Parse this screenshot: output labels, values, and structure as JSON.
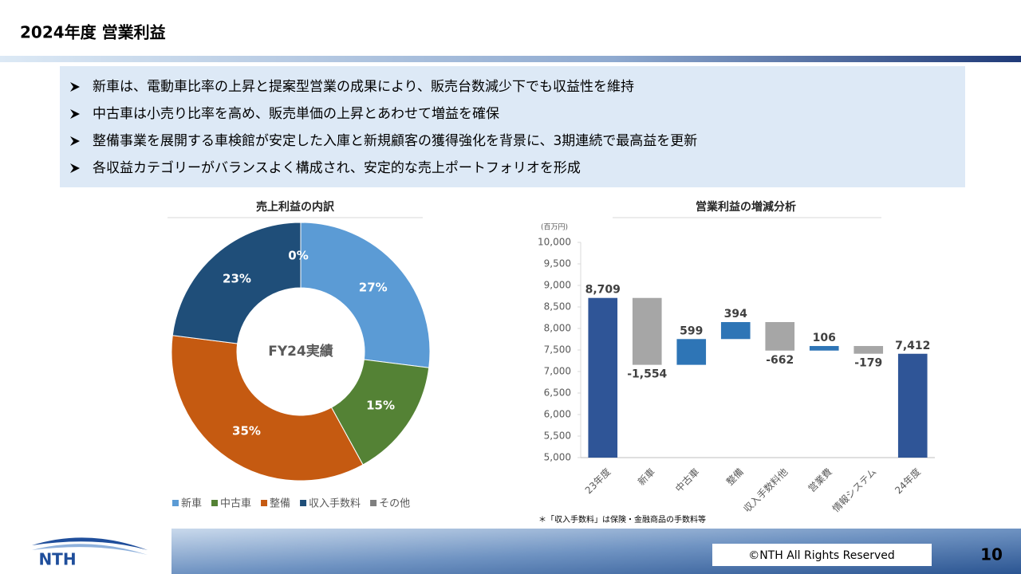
{
  "title": "2024年度 営業利益",
  "bullets": [
    "新車は、電動車比率の上昇と提案型営業の成果により、販売台数減少下でも収益性を維持",
    "中古車は小売り比率を高め、販売単価の上昇とあわせて増益を確保",
    "整備事業を展開する車検館が安定した入庫と新規顧客の獲得強化を背景に、3期連続で最高益を更新",
    "各収益カテゴリーがバランスよく構成され、安定的な売上ポートフォリオを形成"
  ],
  "chart_data": [
    {
      "type": "donut",
      "title": "売上利益の内訳",
      "center_label": "FY24実績",
      "categories": [
        "新車",
        "中古車",
        "整備",
        "収入手数料",
        "その他"
      ],
      "values": [
        27,
        15,
        35,
        23,
        0
      ],
      "value_labels": [
        "27%",
        "15%",
        "35%",
        "23%",
        "0%"
      ],
      "colors": [
        "#5b9bd5",
        "#548235",
        "#c55a11",
        "#1f4e79",
        "#7f7f7f"
      ]
    },
    {
      "type": "waterfall",
      "title": "営業利益の増減分析",
      "unit_label": "(百万円)",
      "categories": [
        "23年度",
        "新車",
        "中古車",
        "整備",
        "収入手数料他",
        "営業費",
        "情報システム",
        "24年度"
      ],
      "values": [
        8709,
        -1554,
        599,
        394,
        -662,
        106,
        -179,
        7412
      ],
      "value_labels": [
        "8,709",
        "-1,554",
        "599",
        "394",
        "-662",
        "106",
        "-179",
        "7,412"
      ],
      "is_total": [
        true,
        false,
        false,
        false,
        false,
        false,
        false,
        true
      ],
      "colors": {
        "total": "#2f5597",
        "increase": "#2e75b6",
        "decrease": "#a6a6a6"
      },
      "ylim": [
        5000,
        10000
      ],
      "yticks": [
        {
          "value": 5000,
          "label": "5,000"
        },
        {
          "value": 5500,
          "label": "5,500"
        },
        {
          "value": 6000,
          "label": "6,000"
        },
        {
          "value": 6500,
          "label": "6,500"
        },
        {
          "value": 7000,
          "label": "7,000"
        },
        {
          "value": 7500,
          "label": "7,500"
        },
        {
          "value": 8000,
          "label": "8,000"
        },
        {
          "value": 8500,
          "label": "8,500"
        },
        {
          "value": 9000,
          "label": "9,000"
        },
        {
          "value": 9500,
          "label": "9,500"
        },
        {
          "value": 10000,
          "label": "10,000"
        }
      ]
    }
  ],
  "footnote": "＊「収入手数料」は保険・金融商品の手数料等",
  "logo": "NTH",
  "copyright": "©NTH All Rights Reserved",
  "page_number": 10
}
